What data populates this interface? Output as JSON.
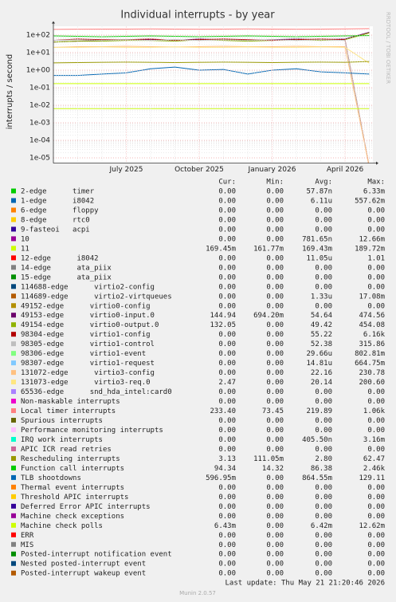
{
  "chart_data": {
    "type": "line",
    "title": "Individual interrupts - by year",
    "y_label": "interrupts / second",
    "side_label": "RRDTOOL / TOBI OETIKER",
    "y_scale": "log",
    "grid": true,
    "x": [
      null,
      null,
      null,
      "July 2025",
      null,
      null,
      "October 2025",
      null,
      null,
      "January 2026",
      null,
      null,
      "April 2026",
      null
    ],
    "ylim": [
      5e-06,
      300
    ],
    "yticks": [
      {
        "value": 100,
        "label": "1e+02"
      },
      {
        "value": 10,
        "label": "1e+01"
      },
      {
        "value": 1,
        "label": "1e+00"
      },
      {
        "value": 0.1,
        "label": "1e-01"
      },
      {
        "value": 0.01,
        "label": "1e-02"
      },
      {
        "value": 0.001,
        "label": "1e-03"
      },
      {
        "value": 0.0001,
        "label": "1e-04"
      },
      {
        "value": 1e-05,
        "label": "1e-05"
      }
    ],
    "stat_headers": [
      "Cur:",
      "Min:",
      "Avg:",
      "Max:"
    ],
    "series": [
      {
        "name": "2-edge      timer",
        "color": "#00cc00",
        "values": [
          0,
          0,
          0,
          0,
          0,
          0,
          0,
          0,
          0,
          0,
          0,
          0,
          0,
          0
        ],
        "stats": [
          "0.00",
          "0.00",
          "57.87n",
          "6.33m"
        ]
      },
      {
        "name": "1-edge      i8042",
        "color": "#0066b3",
        "values": [
          0,
          0,
          0,
          0,
          0,
          0,
          0,
          0,
          0,
          0,
          0,
          0,
          0,
          0
        ],
        "stats": [
          "0.00",
          "0.00",
          "6.11u",
          "557.62m"
        ]
      },
      {
        "name": "6-edge      floppy",
        "color": "#ff8000",
        "values": [
          0,
          0,
          0,
          0,
          0,
          0,
          0,
          0,
          0,
          0,
          0,
          0,
          0,
          0
        ],
        "stats": [
          "0.00",
          "0.00",
          "0.00",
          "0.00"
        ]
      },
      {
        "name": "8-edge      rtc0",
        "color": "#ffcc00",
        "values": [
          0,
          0,
          0,
          0,
          0,
          0,
          0,
          0,
          0,
          0,
          0,
          0,
          0,
          0
        ],
        "stats": [
          "0.00",
          "0.00",
          "0.00",
          "0.00"
        ]
      },
      {
        "name": "9-fasteoi   acpi",
        "color": "#330099",
        "values": [
          0,
          0,
          0,
          0,
          0,
          0,
          0,
          0,
          0,
          0,
          0,
          0,
          0,
          0
        ],
        "stats": [
          "0.00",
          "0.00",
          "0.00",
          "0.00"
        ]
      },
      {
        "name": "10",
        "color": "#990099",
        "values": [
          0,
          0,
          0,
          0,
          0,
          0,
          0,
          0,
          0,
          0,
          0,
          0,
          0,
          0
        ],
        "stats": [
          "0.00",
          "0.00",
          "781.65n",
          "12.66m"
        ]
      },
      {
        "name": "11",
        "color": "#ccff00",
        "values": [
          0.17,
          0.17,
          0.17,
          0.17,
          0.17,
          0.17,
          0.17,
          0.17,
          0.17,
          0.17,
          0.17,
          0.17,
          0.17,
          0.17
        ],
        "stats": [
          "169.45m",
          "161.77m",
          "169.43m",
          "189.72m"
        ]
      },
      {
        "name": "12-edge      i8042",
        "color": "#ff0000",
        "values": [
          0,
          0,
          0,
          0,
          0,
          0,
          0,
          0,
          0,
          0,
          0,
          0,
          0,
          0
        ],
        "stats": [
          "0.00",
          "0.00",
          "11.05u",
          "1.01"
        ]
      },
      {
        "name": "14-edge      ata_piix",
        "color": "#808080",
        "values": [
          0,
          0,
          0,
          0,
          0,
          0,
          0,
          0,
          0,
          0,
          0,
          0,
          0,
          0
        ],
        "stats": [
          "0.00",
          "0.00",
          "0.00",
          "0.00"
        ]
      },
      {
        "name": "15-edge      ata_piix",
        "color": "#008f00",
        "values": [
          0,
          0,
          0,
          0,
          0,
          0,
          0,
          0,
          0,
          0,
          0,
          0,
          0,
          0
        ],
        "stats": [
          "0.00",
          "0.00",
          "0.00",
          "0.00"
        ]
      },
      {
        "name": "114688-edge      virtio2-config",
        "color": "#00487d",
        "values": [
          0,
          0,
          0,
          0,
          0,
          0,
          0,
          0,
          0,
          0,
          0,
          0,
          0,
          0
        ],
        "stats": [
          "0.00",
          "0.00",
          "0.00",
          "0.00"
        ]
      },
      {
        "name": "114689-edge      virtio2-virtqueues",
        "color": "#b35a00",
        "values": [
          0,
          0,
          0,
          0,
          0,
          0,
          0,
          0,
          0,
          0,
          0,
          0,
          0,
          0
        ],
        "stats": [
          "0.00",
          "0.00",
          "1.33u",
          "17.08m"
        ]
      },
      {
        "name": "49152-edge      virtio0-config",
        "color": "#b38f00",
        "values": [
          0,
          0,
          0,
          0,
          0,
          0,
          0,
          0,
          0,
          0,
          0,
          0,
          0,
          0
        ],
        "stats": [
          "0.00",
          "0.00",
          "0.00",
          "0.00"
        ]
      },
      {
        "name": "49153-edge      virtio0-input.0",
        "color": "#6b006b",
        "values": [
          40,
          45,
          50,
          55,
          55,
          50,
          60,
          55,
          50,
          55,
          60,
          55,
          60,
          145
        ],
        "stats": [
          "144.94",
          "694.20m",
          "54.64",
          "474.56"
        ]
      },
      {
        "name": "49154-edge      virtio0-output.0",
        "color": "#8fb300",
        "values": [
          40,
          45,
          45,
          50,
          50,
          45,
          55,
          50,
          45,
          50,
          55,
          50,
          55,
          132
        ],
        "stats": [
          "132.05",
          "0.00",
          "49.42",
          "454.08"
        ]
      },
      {
        "name": "98304-edge      virtio1-config",
        "color": "#b30000",
        "values": [
          50,
          60,
          55,
          55,
          60,
          50,
          55,
          60,
          55,
          50,
          55,
          60,
          55,
          0
        ],
        "stats": [
          "0.00",
          "0.00",
          "55.22",
          "6.16k"
        ]
      },
      {
        "name": "98305-edge      virtio1-control",
        "color": "#bebebe",
        "values": [
          50,
          55,
          50,
          55,
          50,
          55,
          50,
          55,
          50,
          55,
          50,
          55,
          50,
          0
        ],
        "stats": [
          "0.00",
          "0.00",
          "52.38",
          "315.86"
        ]
      },
      {
        "name": "98306-edge      virtio1-event",
        "color": "#80ff80",
        "values": [
          0,
          0,
          0,
          0,
          0,
          0,
          0,
          0,
          0,
          0,
          0,
          0,
          0,
          0
        ],
        "stats": [
          "0.00",
          "0.00",
          "29.66u",
          "802.81m"
        ]
      },
      {
        "name": "98307-edge      virtio1-request",
        "color": "#80c9ff",
        "values": [
          0,
          0,
          0,
          0,
          0,
          0,
          0,
          0,
          0,
          0,
          0,
          0,
          0,
          0
        ],
        "stats": [
          "0.00",
          "0.00",
          "14.81u",
          "664.75m"
        ]
      },
      {
        "name": "131072-edge      virtio3-config",
        "color": "#ffc080",
        "values": [
          20,
          22,
          22,
          23,
          22,
          21,
          22,
          23,
          22,
          22,
          23,
          22,
          22,
          0
        ],
        "stats": [
          "0.00",
          "0.00",
          "22.16",
          "230.78"
        ]
      },
      {
        "name": "131073-edge      virtio3-req.0",
        "color": "#ffe680",
        "values": [
          20,
          20,
          21,
          20,
          20,
          21,
          20,
          20,
          21,
          20,
          20,
          21,
          20,
          2.47
        ],
        "stats": [
          "2.47",
          "0.00",
          "20.14",
          "200.60"
        ]
      },
      {
        "name": "65536-edge      snd_hda_intel:card0",
        "color": "#aa80ff",
        "values": [
          0,
          0,
          0,
          0,
          0,
          0,
          0,
          0,
          0,
          0,
          0,
          0,
          0,
          0
        ],
        "stats": [
          "0.00",
          "0.00",
          "0.00",
          "0.00"
        ]
      },
      {
        "name": "Non-maskable interrupts",
        "color": "#ee00cc",
        "values": [
          0,
          0,
          0,
          0,
          0,
          0,
          0,
          0,
          0,
          0,
          0,
          0,
          0,
          0
        ],
        "stats": [
          "0.00",
          "0.00",
          "0.00",
          "0.00"
        ]
      },
      {
        "name": "Local timer interrupts",
        "color": "#ff8080",
        "values": [
          210,
          215,
          220,
          220,
          225,
          220,
          215,
          220,
          225,
          220,
          215,
          220,
          225,
          233
        ],
        "stats": [
          "233.40",
          "73.45",
          "219.89",
          "1.06k"
        ]
      },
      {
        "name": "Spurious interrupts",
        "color": "#666600",
        "values": [
          0,
          0,
          0,
          0,
          0,
          0,
          0,
          0,
          0,
          0,
          0,
          0,
          0,
          0
        ],
        "stats": [
          "0.00",
          "0.00",
          "0.00",
          "0.00"
        ]
      },
      {
        "name": "Performance monitoring interrupts",
        "color": "#ffbfff",
        "values": [
          0,
          0,
          0,
          0,
          0,
          0,
          0,
          0,
          0,
          0,
          0,
          0,
          0,
          0
        ],
        "stats": [
          "0.00",
          "0.00",
          "0.00",
          "0.00"
        ]
      },
      {
        "name": "IRQ work interrupts",
        "color": "#00ffcc",
        "values": [
          0,
          0,
          0,
          0,
          0,
          0,
          0,
          0,
          0,
          0,
          0,
          0,
          0,
          0
        ],
        "stats": [
          "0.00",
          "0.00",
          "405.50n",
          "3.16m"
        ]
      },
      {
        "name": "APIC ICR read retries",
        "color": "#cc6699",
        "values": [
          0,
          0,
          0,
          0,
          0,
          0,
          0,
          0,
          0,
          0,
          0,
          0,
          0,
          0
        ],
        "stats": [
          "0.00",
          "0.00",
          "0.00",
          "0.00"
        ]
      },
      {
        "name": "Rescheduling interrupts",
        "color": "#999900",
        "values": [
          2.6,
          2.7,
          2.8,
          2.9,
          2.8,
          2.7,
          2.8,
          2.9,
          2.8,
          2.7,
          2.8,
          2.9,
          2.8,
          3.13
        ],
        "stats": [
          "3.13",
          "111.05m",
          "2.80",
          "62.47"
        ]
      },
      {
        "name": "Function call interrupts",
        "color": "#00cc00",
        "values": [
          90,
          85,
          80,
          85,
          90,
          85,
          80,
          85,
          90,
          85,
          80,
          85,
          90,
          94
        ],
        "stats": [
          "94.34",
          "14.32",
          "86.38",
          "2.46k"
        ]
      },
      {
        "name": "TLB shootdowns",
        "color": "#0066b3",
        "values": [
          0.5,
          0.5,
          0.6,
          0.7,
          1.2,
          1.5,
          1.0,
          1.1,
          0.6,
          1.0,
          1.2,
          0.8,
          0.7,
          0.6
        ],
        "stats": [
          "596.95m",
          "0.00",
          "864.55m",
          "129.11"
        ]
      },
      {
        "name": "Thermal event interrupts",
        "color": "#ff8000",
        "values": [
          0,
          0,
          0,
          0,
          0,
          0,
          0,
          0,
          0,
          0,
          0,
          0,
          0,
          0
        ],
        "stats": [
          "0.00",
          "0.00",
          "0.00",
          "0.00"
        ]
      },
      {
        "name": "Threshold APIC interrupts",
        "color": "#ffcc00",
        "values": [
          0,
          0,
          0,
          0,
          0,
          0,
          0,
          0,
          0,
          0,
          0,
          0,
          0,
          0
        ],
        "stats": [
          "0.00",
          "0.00",
          "0.00",
          "0.00"
        ]
      },
      {
        "name": "Deferred Error APIC interrupts",
        "color": "#330099",
        "values": [
          0,
          0,
          0,
          0,
          0,
          0,
          0,
          0,
          0,
          0,
          0,
          0,
          0,
          0
        ],
        "stats": [
          "0.00",
          "0.00",
          "0.00",
          "0.00"
        ]
      },
      {
        "name": "Machine check exceptions",
        "color": "#990099",
        "values": [
          0,
          0,
          0,
          0,
          0,
          0,
          0,
          0,
          0,
          0,
          0,
          0,
          0,
          0
        ],
        "stats": [
          "0.00",
          "0.00",
          "0.00",
          "0.00"
        ]
      },
      {
        "name": "Machine check polls",
        "color": "#ccff00",
        "values": [
          0.0064,
          0.0064,
          0.0064,
          0.0064,
          0.0064,
          0.0064,
          0.0064,
          0.0064,
          0.0064,
          0.0064,
          0.0064,
          0.0064,
          0.0064,
          0.0064
        ],
        "stats": [
          "6.43m",
          "0.00",
          "6.42m",
          "12.62m"
        ]
      },
      {
        "name": "ERR",
        "color": "#ff0000",
        "values": [
          0,
          0,
          0,
          0,
          0,
          0,
          0,
          0,
          0,
          0,
          0,
          0,
          0,
          0
        ],
        "stats": [
          "0.00",
          "0.00",
          "0.00",
          "0.00"
        ]
      },
      {
        "name": "MIS",
        "color": "#808080",
        "values": [
          0,
          0,
          0,
          0,
          0,
          0,
          0,
          0,
          0,
          0,
          0,
          0,
          0,
          0
        ],
        "stats": [
          "0.00",
          "0.00",
          "0.00",
          "0.00"
        ]
      },
      {
        "name": "Posted-interrupt notification event",
        "color": "#008f00",
        "values": [
          0,
          0,
          0,
          0,
          0,
          0,
          0,
          0,
          0,
          0,
          0,
          0,
          0,
          0
        ],
        "stats": [
          "0.00",
          "0.00",
          "0.00",
          "0.00"
        ]
      },
      {
        "name": "Nested posted-interrupt event",
        "color": "#00487d",
        "values": [
          0,
          0,
          0,
          0,
          0,
          0,
          0,
          0,
          0,
          0,
          0,
          0,
          0,
          0
        ],
        "stats": [
          "0.00",
          "0.00",
          "0.00",
          "0.00"
        ]
      },
      {
        "name": "Posted-interrupt wakeup event",
        "color": "#b35a00",
        "values": [
          0,
          0,
          0,
          0,
          0,
          0,
          0,
          0,
          0,
          0,
          0,
          0,
          0,
          0
        ],
        "stats": [
          "0.00",
          "0.00",
          "0.00",
          "0.00"
        ]
      }
    ],
    "last_update": "Last update: Thu May 21 21:20:46 2026",
    "footer": "Munin 2.0.57"
  }
}
